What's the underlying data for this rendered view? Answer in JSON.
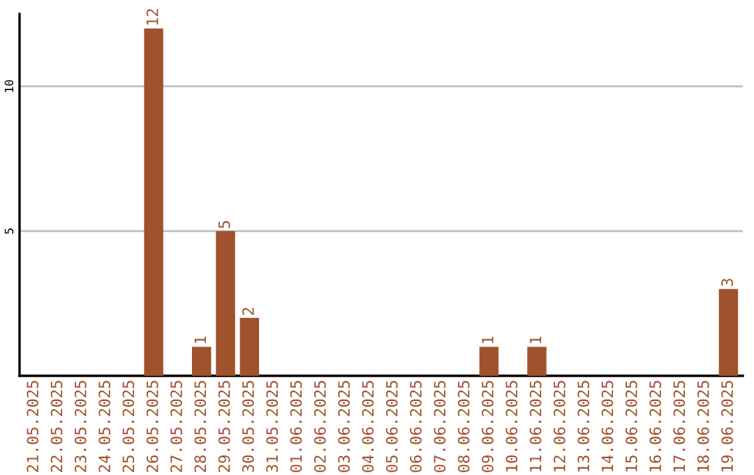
{
  "chart_data": {
    "type": "bar",
    "categories": [
      "21.05.2025",
      "22.05.2025",
      "23.05.2025",
      "24.05.2025",
      "25.05.2025",
      "26.05.2025",
      "27.05.2025",
      "28.05.2025",
      "29.05.2025",
      "30.05.2025",
      "31.05.2025",
      "01.06.2025",
      "02.06.2025",
      "03.06.2025",
      "04.06.2025",
      "05.06.2025",
      "06.06.2025",
      "07.06.2025",
      "08.06.2025",
      "09.06.2025",
      "10.06.2025",
      "11.06.2025",
      "12.06.2025",
      "13.06.2025",
      "14.06.2025",
      "15.06.2025",
      "16.06.2025",
      "17.06.2025",
      "18.06.2025",
      "19.06.2025"
    ],
    "values": [
      0,
      0,
      0,
      0,
      0,
      12,
      0,
      1,
      5,
      2,
      0,
      0,
      0,
      0,
      0,
      0,
      0,
      0,
      0,
      1,
      0,
      1,
      0,
      0,
      0,
      0,
      0,
      0,
      0,
      3
    ],
    "value_labels": [
      null,
      null,
      null,
      null,
      null,
      "12",
      null,
      "1",
      "5",
      "2",
      null,
      null,
      null,
      null,
      null,
      null,
      null,
      null,
      null,
      "1",
      null,
      "1",
      null,
      null,
      null,
      null,
      null,
      null,
      null,
      "3"
    ],
    "color": "#a0522d",
    "ylim": [
      0,
      12.5
    ],
    "yticks": [
      5,
      10
    ],
    "grid": "y"
  }
}
